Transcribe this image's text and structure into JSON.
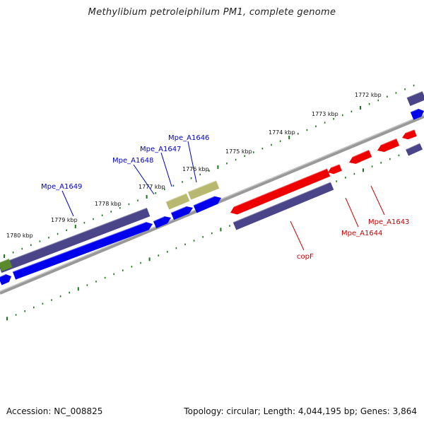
{
  "title": "Methylibium petroleiphilum PM1, complete genome",
  "accession_text": "Accession: NC_008825",
  "topology_text": "Topology: circular; Length: 4,044,195 bp; Genes: 3,864",
  "colors": {
    "backbone": "#808080",
    "tick": "#1a7a1a",
    "cds_forward": "#0000ee",
    "cds_reverse": "#ee0000",
    "gene_track": "#4a4488",
    "rna_feature": "#b8b870",
    "other_feature": "#5a8a2a",
    "label_forward": "#0000cc",
    "label_reverse": "#cc0000"
  },
  "kbp_labels": [
    "1772 kbp",
    "1773 kbp",
    "1774 kbp",
    "1775 kbp",
    "1776 kbp",
    "1777 kbp",
    "1778 kbp",
    "1779 kbp",
    "1780 kbp"
  ],
  "gene_labels": [
    {
      "text": "Mpe_A1646",
      "strand": "forward"
    },
    {
      "text": "Mpe_A1647",
      "strand": "forward"
    },
    {
      "text": "Mpe_A1648",
      "strand": "forward"
    },
    {
      "text": "Mpe_A1649",
      "strand": "forward"
    },
    {
      "text": "Mpe_A1643",
      "strand": "reverse"
    },
    {
      "text": "Mpe_A1644",
      "strand": "reverse"
    },
    {
      "text": "copF",
      "strand": "reverse"
    }
  ]
}
